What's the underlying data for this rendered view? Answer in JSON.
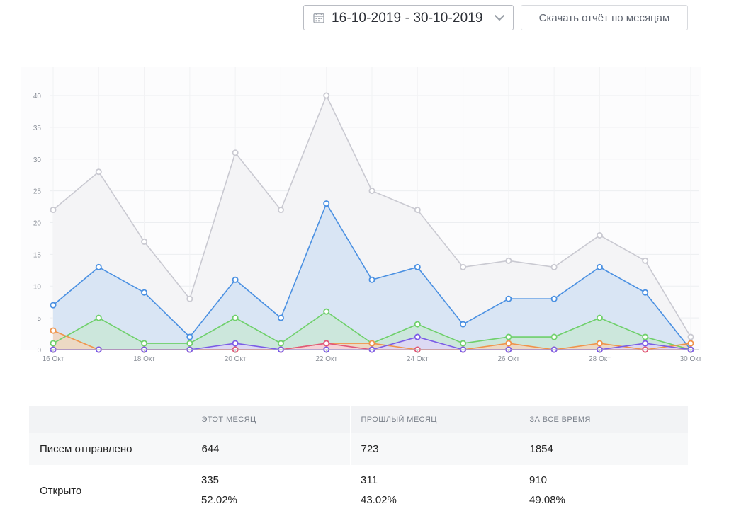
{
  "header": {
    "date_range": "16-10-2019 - 30-10-2019",
    "download_label": "Скачать отчёт по месяцам"
  },
  "chart_data": {
    "type": "area",
    "x": [
      "16 Окт",
      "17 Окт",
      "18 Окт",
      "19 Окт",
      "20 Окт",
      "21 Окт",
      "22 Окт",
      "23 Окт",
      "24 Окт",
      "25 Окт",
      "26 Окт",
      "27 Окт",
      "28 Окт",
      "29 Окт",
      "30 Окт"
    ],
    "x_tick_labels": [
      "16 Окт",
      "18 Окт",
      "20 Окт",
      "22 Окт",
      "24 Окт",
      "26 Окт",
      "28 Окт",
      "30 Окт"
    ],
    "y_ticks": [
      0,
      5,
      10,
      15,
      20,
      25,
      30,
      35,
      40
    ],
    "ylim": [
      0,
      40
    ],
    "grid": true,
    "legend": "none",
    "series": [
      {
        "color": "#c9c9d1",
        "fill": "#f4f4f6",
        "values": [
          22,
          28,
          17,
          8,
          31,
          22,
          40,
          25,
          22,
          13,
          14,
          13,
          18,
          14,
          2
        ]
      },
      {
        "color": "#4a90e2",
        "fill": "#d3e2f3",
        "values": [
          7,
          13,
          9,
          2,
          11,
          5,
          23,
          11,
          13,
          4,
          8,
          8,
          13,
          9,
          0
        ]
      },
      {
        "color": "#6fd06b",
        "fill": "#c9e7d7",
        "values": [
          1,
          5,
          1,
          1,
          5,
          1,
          6,
          1,
          4,
          1,
          2,
          2,
          5,
          2,
          0
        ]
      },
      {
        "color": "#f0934a",
        "fill": "#f1d6bf",
        "values": [
          3,
          0,
          0,
          0,
          0,
          0,
          1,
          1,
          0,
          0,
          1,
          0,
          1,
          0,
          1
        ]
      },
      {
        "color": "#e0587a",
        "fill": "#f6d1db",
        "values": [
          0,
          0,
          0,
          0,
          0,
          0,
          1,
          0,
          0,
          0,
          0,
          0,
          0,
          0,
          0
        ]
      },
      {
        "color": "#7b5ce6",
        "fill": "#ded6f7",
        "values": [
          0,
          0,
          0,
          0,
          1,
          0,
          0,
          0,
          2,
          0,
          0,
          0,
          0,
          1,
          0
        ]
      }
    ]
  },
  "table": {
    "headers": [
      "",
      "ЭТОТ МЕСЯЦ",
      "ПРОШЛЫЙ МЕСЯЦ",
      "ЗА ВСЕ ВРЕМЯ"
    ],
    "sent": {
      "label": "Писем отправлено",
      "this_month": "644",
      "last_month": "723",
      "all_time": "1854"
    },
    "opened": {
      "label": "Открыто",
      "this_month": "335",
      "this_month_pct": "52.02%",
      "last_month": "311",
      "last_month_pct": "43.02%",
      "all_time": "910",
      "all_time_pct": "49.08%"
    }
  }
}
